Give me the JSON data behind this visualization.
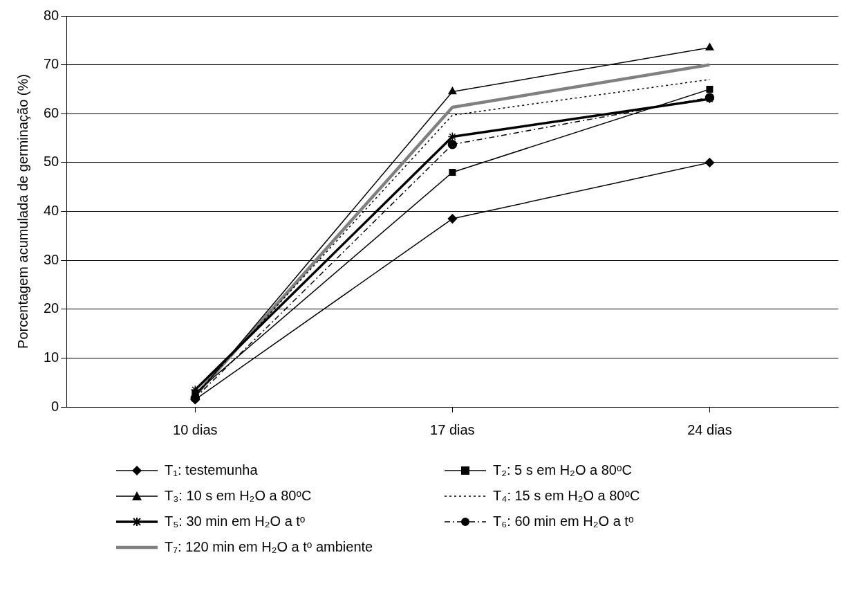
{
  "chart_data": {
    "type": "line",
    "ylabel": "Porcentagem acumulada de germinação (%)",
    "categories": [
      "10 dias",
      "17 dias",
      "24 dias"
    ],
    "ylim": [
      0,
      80
    ],
    "yticks": [
      0,
      10,
      20,
      30,
      40,
      50,
      60,
      70,
      80
    ],
    "grid": "y",
    "legend": "bottom",
    "series": [
      {
        "name": "T₁: testemunha",
        "color": "#000000",
        "marker": "diamond",
        "line_style": "solid",
        "values": [
          1.5,
          38.5,
          50
        ]
      },
      {
        "name": "T₂: 5 s em H₂O a 80ᵒC",
        "color": "#000000",
        "marker": "square",
        "line_style": "solid",
        "values": [
          2.8,
          48,
          65
        ]
      },
      {
        "name": "T₃: 10 s em H₂O a 80ᵒC",
        "color": "#000000",
        "marker": "triangle",
        "line_style": "solid",
        "values": [
          2.1,
          64.5,
          73.5
        ]
      },
      {
        "name": "T₄: 15 s em H₂O a 80ᵒC",
        "color": "#000000",
        "marker": "none",
        "line_style": "dotted",
        "values": [
          2.5,
          59.7,
          67
        ]
      },
      {
        "name": "T₅: 30 min em H₂O a tᵒ",
        "color": "#000000",
        "marker": "cross",
        "line_style": "solid",
        "values": [
          3.5,
          55.3,
          63
        ]
      },
      {
        "name": "T₆: 60 min em H₂O a tᵒ",
        "color": "#000000",
        "marker": "circle",
        "line_style": "dashed",
        "values": [
          1.8,
          53.7,
          63.3
        ]
      },
      {
        "name": "T₇: 120 min em H₂O a tᵒ ambiente",
        "color": "#808080",
        "marker": "none",
        "line_style": "solid",
        "values": [
          2.3,
          61.3,
          70
        ]
      }
    ]
  }
}
